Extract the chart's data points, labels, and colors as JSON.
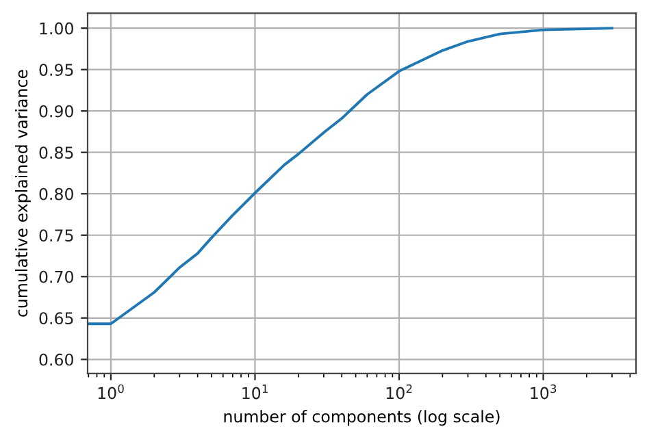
{
  "chart_data": {
    "type": "line",
    "xlabel": "number of components (log scale)",
    "ylabel": "cumulative explained variance",
    "log": "x",
    "grid": true,
    "marker": "none",
    "line_style": "solid",
    "x": [
      0.7,
      1,
      2,
      3,
      4,
      5,
      7,
      10,
      16,
      20,
      30,
      40,
      60,
      100,
      200,
      300,
      500,
      1000,
      3000
    ],
    "series": [
      {
        "color": "#1f77b4",
        "values": [
          0.643,
          0.643,
          0.681,
          0.711,
          0.728,
          0.747,
          0.774,
          0.801,
          0.835,
          0.848,
          0.874,
          0.891,
          0.92,
          0.948,
          0.973,
          0.984,
          0.993,
          0.998,
          1.0
        ]
      }
    ],
    "xlim": [
      0.69,
      4400
    ],
    "ylim": [
      0.583,
      1.018
    ],
    "xticks": [
      {
        "value": 1,
        "label": "10$^{0}$"
      },
      {
        "value": 10,
        "label": "10$^{1}$"
      },
      {
        "value": 100,
        "label": "10$^{2}$"
      },
      {
        "value": 1000,
        "label": "10$^{3}$"
      }
    ],
    "yticks": [
      {
        "value": 0.6,
        "label": "0.60"
      },
      {
        "value": 0.65,
        "label": "0.65"
      },
      {
        "value": 0.7,
        "label": "0.70"
      },
      {
        "value": 0.75,
        "label": "0.75"
      },
      {
        "value": 0.8,
        "label": "0.80"
      },
      {
        "value": 0.85,
        "label": "0.85"
      },
      {
        "value": 0.9,
        "label": "0.90"
      },
      {
        "value": 0.95,
        "label": "0.95"
      },
      {
        "value": 1.0,
        "label": "1.00"
      }
    ]
  }
}
